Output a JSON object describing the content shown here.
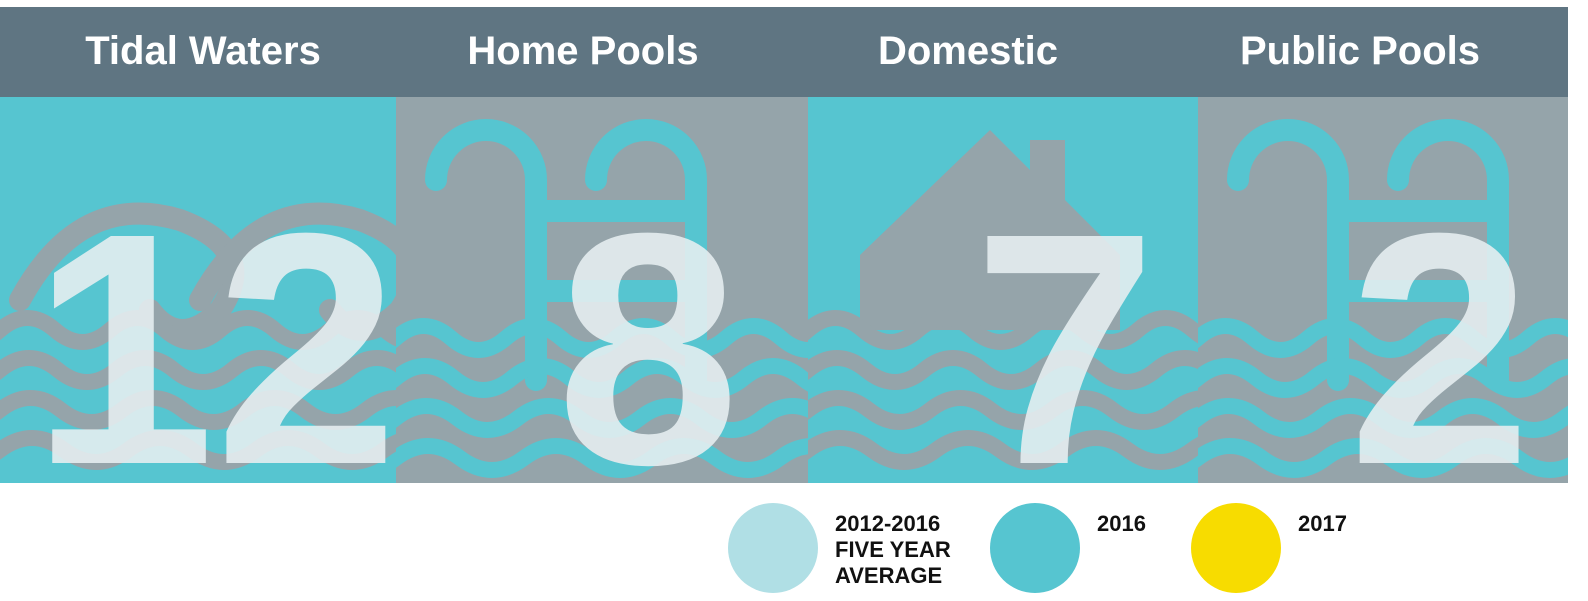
{
  "panels": [
    {
      "title": "Tidal Waters",
      "value": 12,
      "color": "#56c5d0",
      "pattern": "#95a4aa"
    },
    {
      "title": "Home Pools",
      "value": 8,
      "color": "#95a4aa",
      "pattern": "#56c5d0"
    },
    {
      "title": "Domestic",
      "value": 7,
      "color": "#56c5d0",
      "pattern": "#95a4aa"
    },
    {
      "title": "Public Pools",
      "value": 2,
      "color": "#95a4aa",
      "pattern": "#56c5d0"
    }
  ],
  "legend": [
    {
      "label": [
        "2012-2016",
        "FIVE YEAR",
        "AVERAGE"
      ],
      "color": "#b0dfe5"
    },
    {
      "label": [
        "2016"
      ],
      "color": "#56c5d0"
    },
    {
      "label": [
        "2017"
      ],
      "color": "#f7dc00"
    }
  ]
}
